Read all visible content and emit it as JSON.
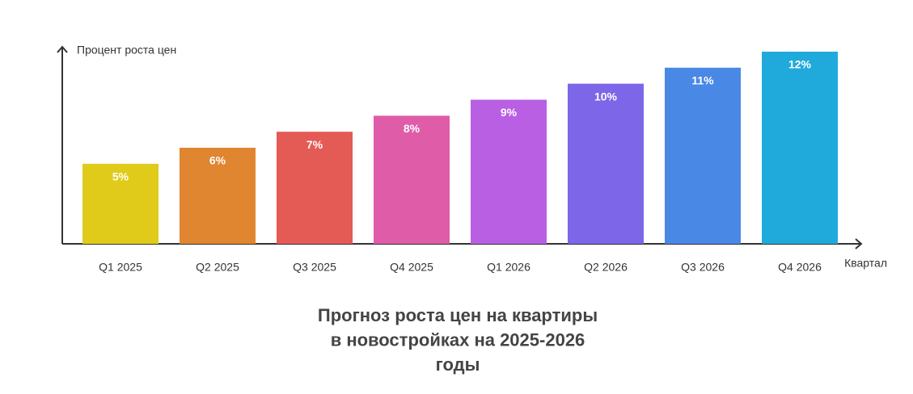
{
  "chart_data": {
    "type": "bar",
    "title": [
      "Прогноз роста цен на квартиры",
      "в новостройках на 2025-2026",
      "годы"
    ],
    "y_label": "Процент роста цен",
    "x_label": "Квартал",
    "categories": [
      "Q1 2025",
      "Q2 2025",
      "Q3 2025",
      "Q4 2025",
      "Q1 2026",
      "Q2 2026",
      "Q3 2026",
      "Q4 2026"
    ],
    "values": [
      5,
      6,
      7,
      8,
      9,
      10,
      11,
      12
    ],
    "value_labels": [
      "5%",
      "6%",
      "7%",
      "8%",
      "9%",
      "10%",
      "11%",
      "12%"
    ],
    "colors": [
      "#e0cb1a",
      "#e08530",
      "#e45a55",
      "#df5ca8",
      "#b95fe3",
      "#7e66e8",
      "#4a88e6",
      "#20aadb"
    ],
    "ylim": [
      0,
      12
    ]
  }
}
